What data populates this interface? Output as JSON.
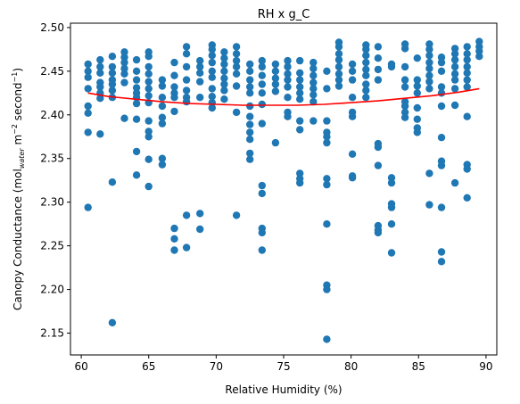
{
  "chart_data": {
    "type": "scatter",
    "title": "RH x g_C",
    "xlabel": "Relative Humidity (%)",
    "ylabel_main": "Canopy Conductance (mol",
    "ylabel_sub": "water",
    "ylabel_mid": " m",
    "ylabel_sup1": "−2",
    "ylabel_mid2": " second",
    "ylabel_sup2": "−1",
    "ylabel_end": ")",
    "xlim": [
      59.2,
      90.8
    ],
    "ylim": [
      2.125,
      2.505
    ],
    "xticks": [
      60,
      65,
      70,
      75,
      80,
      85,
      90
    ],
    "yticks": [
      2.15,
      2.2,
      2.25,
      2.3,
      2.35,
      2.4,
      2.45,
      2.5
    ],
    "colors": {
      "points": "#1f77b4",
      "fit": "#ff0000"
    },
    "fit_line": {
      "x": [
        60.5,
        62,
        64,
        66,
        68,
        70,
        72,
        74,
        76,
        78,
        80,
        82,
        84,
        86,
        88,
        89.5
      ],
      "y": [
        2.425,
        2.421,
        2.418,
        2.415,
        2.413,
        2.412,
        2.411,
        2.411,
        2.411,
        2.412,
        2.414,
        2.416,
        2.419,
        2.422,
        2.426,
        2.43
      ]
    },
    "points": [
      [
        60.5,
        2.458
      ],
      [
        60.5,
        2.45
      ],
      [
        60.5,
        2.443
      ],
      [
        60.5,
        2.43
      ],
      [
        60.5,
        2.41
      ],
      [
        60.5,
        2.402
      ],
      [
        60.5,
        2.38
      ],
      [
        60.5,
        2.294
      ],
      [
        61.4,
        2.463
      ],
      [
        61.4,
        2.455
      ],
      [
        61.4,
        2.448
      ],
      [
        61.4,
        2.437
      ],
      [
        61.4,
        2.432
      ],
      [
        61.4,
        2.425
      ],
      [
        61.4,
        2.419
      ],
      [
        61.4,
        2.378
      ],
      [
        62.3,
        2.467
      ],
      [
        62.3,
        2.455
      ],
      [
        62.3,
        2.448
      ],
      [
        62.3,
        2.44
      ],
      [
        62.3,
        2.435
      ],
      [
        62.3,
        2.428
      ],
      [
        62.3,
        2.42
      ],
      [
        62.3,
        2.323
      ],
      [
        62.3,
        2.162
      ],
      [
        63.2,
        2.472
      ],
      [
        63.2,
        2.466
      ],
      [
        63.2,
        2.46
      ],
      [
        63.2,
        2.453
      ],
      [
        63.2,
        2.447
      ],
      [
        63.2,
        2.437
      ],
      [
        63.2,
        2.396
      ],
      [
        64.1,
        2.463
      ],
      [
        64.1,
        2.45
      ],
      [
        64.1,
        2.44
      ],
      [
        64.1,
        2.431
      ],
      [
        64.1,
        2.425
      ],
      [
        64.1,
        2.42
      ],
      [
        64.1,
        2.413
      ],
      [
        64.1,
        2.395
      ],
      [
        64.1,
        2.358
      ],
      [
        64.1,
        2.331
      ],
      [
        65.0,
        2.472
      ],
      [
        65.0,
        2.467
      ],
      [
        65.0,
        2.455
      ],
      [
        65.0,
        2.447
      ],
      [
        65.0,
        2.438
      ],
      [
        65.0,
        2.43
      ],
      [
        65.0,
        2.422
      ],
      [
        65.0,
        2.414
      ],
      [
        65.0,
        2.393
      ],
      [
        65.0,
        2.381
      ],
      [
        65.0,
        2.375
      ],
      [
        65.0,
        2.349
      ],
      [
        65.0,
        2.318
      ],
      [
        66.0,
        2.44
      ],
      [
        66.0,
        2.433
      ],
      [
        66.0,
        2.42
      ],
      [
        66.0,
        2.41
      ],
      [
        66.0,
        2.397
      ],
      [
        66.0,
        2.39
      ],
      [
        66.0,
        2.35
      ],
      [
        66.0,
        2.343
      ],
      [
        66.9,
        2.46
      ],
      [
        66.9,
        2.445
      ],
      [
        66.9,
        2.432
      ],
      [
        66.9,
        2.425
      ],
      [
        66.9,
        2.42
      ],
      [
        66.9,
        2.404
      ],
      [
        66.9,
        2.27
      ],
      [
        66.9,
        2.258
      ],
      [
        66.9,
        2.245
      ],
      [
        67.8,
        2.478
      ],
      [
        67.8,
        2.47
      ],
      [
        67.8,
        2.455
      ],
      [
        67.8,
        2.44
      ],
      [
        67.8,
        2.428
      ],
      [
        67.8,
        2.42
      ],
      [
        67.8,
        2.415
      ],
      [
        67.8,
        2.285
      ],
      [
        67.8,
        2.248
      ],
      [
        68.8,
        2.462
      ],
      [
        68.8,
        2.455
      ],
      [
        68.8,
        2.448
      ],
      [
        68.8,
        2.438
      ],
      [
        68.8,
        2.42
      ],
      [
        68.8,
        2.287
      ],
      [
        68.8,
        2.269
      ],
      [
        69.7,
        2.48
      ],
      [
        69.7,
        2.475
      ],
      [
        69.7,
        2.468
      ],
      [
        69.7,
        2.46
      ],
      [
        69.7,
        2.45
      ],
      [
        69.7,
        2.443
      ],
      [
        69.7,
        2.43
      ],
      [
        69.7,
        2.421
      ],
      [
        69.7,
        2.414
      ],
      [
        69.7,
        2.408
      ],
      [
        70.6,
        2.472
      ],
      [
        70.6,
        2.465
      ],
      [
        70.6,
        2.458
      ],
      [
        70.6,
        2.45
      ],
      [
        70.6,
        2.442
      ],
      [
        70.6,
        2.435
      ],
      [
        70.6,
        2.428
      ],
      [
        70.6,
        2.418
      ],
      [
        71.5,
        2.478
      ],
      [
        71.5,
        2.47
      ],
      [
        71.5,
        2.462
      ],
      [
        71.5,
        2.455
      ],
      [
        71.5,
        2.447
      ],
      [
        71.5,
        2.433
      ],
      [
        71.5,
        2.403
      ],
      [
        71.5,
        2.285
      ],
      [
        72.5,
        2.458
      ],
      [
        72.5,
        2.45
      ],
      [
        72.5,
        2.44
      ],
      [
        72.5,
        2.432
      ],
      [
        72.5,
        2.425
      ],
      [
        72.5,
        2.41
      ],
      [
        72.5,
        2.398
      ],
      [
        72.5,
        2.389
      ],
      [
        72.5,
        2.38
      ],
      [
        72.5,
        2.372
      ],
      [
        72.5,
        2.356
      ],
      [
        72.5,
        2.349
      ],
      [
        73.4,
        2.462
      ],
      [
        73.4,
        2.455
      ],
      [
        73.4,
        2.445
      ],
      [
        73.4,
        2.435
      ],
      [
        73.4,
        2.425
      ],
      [
        73.4,
        2.412
      ],
      [
        73.4,
        2.39
      ],
      [
        73.4,
        2.319
      ],
      [
        73.4,
        2.31
      ],
      [
        73.4,
        2.27
      ],
      [
        73.4,
        2.265
      ],
      [
        73.4,
        2.245
      ],
      [
        74.4,
        2.458
      ],
      [
        74.4,
        2.45
      ],
      [
        74.4,
        2.442
      ],
      [
        74.4,
        2.435
      ],
      [
        74.4,
        2.427
      ],
      [
        74.4,
        2.368
      ],
      [
        75.3,
        2.462
      ],
      [
        75.3,
        2.455
      ],
      [
        75.3,
        2.447
      ],
      [
        75.3,
        2.44
      ],
      [
        75.3,
        2.432
      ],
      [
        75.3,
        2.42
      ],
      [
        75.3,
        2.403
      ],
      [
        75.3,
        2.398
      ],
      [
        76.2,
        2.462
      ],
      [
        76.2,
        2.448
      ],
      [
        76.2,
        2.44
      ],
      [
        76.2,
        2.432
      ],
      [
        76.2,
        2.425
      ],
      [
        76.2,
        2.418
      ],
      [
        76.2,
        2.393
      ],
      [
        76.2,
        2.383
      ],
      [
        76.2,
        2.333
      ],
      [
        76.2,
        2.327
      ],
      [
        76.2,
        2.322
      ],
      [
        77.2,
        2.46
      ],
      [
        77.2,
        2.453
      ],
      [
        77.2,
        2.445
      ],
      [
        77.2,
        2.437
      ],
      [
        77.2,
        2.43
      ],
      [
        77.2,
        2.423
      ],
      [
        77.2,
        2.415
      ],
      [
        77.2,
        2.393
      ],
      [
        78.2,
        2.45
      ],
      [
        78.2,
        2.43
      ],
      [
        78.2,
        2.393
      ],
      [
        78.2,
        2.38
      ],
      [
        78.2,
        2.375
      ],
      [
        78.2,
        2.368
      ],
      [
        78.2,
        2.327
      ],
      [
        78.2,
        2.32
      ],
      [
        78.2,
        2.275
      ],
      [
        78.2,
        2.205
      ],
      [
        78.2,
        2.2
      ],
      [
        78.2,
        2.143
      ],
      [
        79.1,
        2.483
      ],
      [
        79.1,
        2.478
      ],
      [
        79.1,
        2.47
      ],
      [
        79.1,
        2.463
      ],
      [
        79.1,
        2.455
      ],
      [
        79.1,
        2.447
      ],
      [
        79.1,
        2.44
      ],
      [
        79.1,
        2.433
      ],
      [
        80.1,
        2.458
      ],
      [
        80.1,
        2.45
      ],
      [
        80.1,
        2.44
      ],
      [
        80.1,
        2.42
      ],
      [
        80.1,
        2.403
      ],
      [
        80.1,
        2.398
      ],
      [
        80.1,
        2.355
      ],
      [
        80.1,
        2.33
      ],
      [
        80.1,
        2.328
      ],
      [
        81.1,
        2.48
      ],
      [
        81.1,
        2.475
      ],
      [
        81.1,
        2.468
      ],
      [
        81.1,
        2.46
      ],
      [
        81.1,
        2.452
      ],
      [
        81.1,
        2.445
      ],
      [
        81.1,
        2.435
      ],
      [
        81.1,
        2.428
      ],
      [
        81.1,
        2.42
      ],
      [
        82.0,
        2.478
      ],
      [
        82.0,
        2.465
      ],
      [
        82.0,
        2.452
      ],
      [
        82.0,
        2.44
      ],
      [
        82.0,
        2.367
      ],
      [
        82.0,
        2.363
      ],
      [
        82.0,
        2.342
      ],
      [
        82.0,
        2.273
      ],
      [
        82.0,
        2.268
      ],
      [
        82.0,
        2.265
      ],
      [
        83.0,
        2.458
      ],
      [
        83.0,
        2.455
      ],
      [
        83.0,
        2.328
      ],
      [
        83.0,
        2.322
      ],
      [
        83.0,
        2.298
      ],
      [
        83.0,
        2.294
      ],
      [
        83.0,
        2.275
      ],
      [
        83.0,
        2.242
      ],
      [
        84.0,
        2.481
      ],
      [
        84.0,
        2.476
      ],
      [
        84.0,
        2.455
      ],
      [
        84.0,
        2.44
      ],
      [
        84.0,
        2.432
      ],
      [
        84.0,
        2.415
      ],
      [
        84.0,
        2.41
      ],
      [
        84.0,
        2.403
      ],
      [
        84.0,
        2.397
      ],
      [
        84.9,
        2.465
      ],
      [
        84.9,
        2.44
      ],
      [
        84.9,
        2.433
      ],
      [
        84.9,
        2.425
      ],
      [
        84.9,
        2.408
      ],
      [
        84.9,
        2.395
      ],
      [
        84.9,
        2.385
      ],
      [
        84.9,
        2.38
      ],
      [
        85.8,
        2.481
      ],
      [
        85.8,
        2.475
      ],
      [
        85.8,
        2.468
      ],
      [
        85.8,
        2.46
      ],
      [
        85.8,
        2.453
      ],
      [
        85.8,
        2.445
      ],
      [
        85.8,
        2.438
      ],
      [
        85.8,
        2.43
      ],
      [
        85.8,
        2.333
      ],
      [
        85.8,
        2.297
      ],
      [
        86.7,
        2.466
      ],
      [
        86.7,
        2.46
      ],
      [
        86.7,
        2.45
      ],
      [
        86.7,
        2.432
      ],
      [
        86.7,
        2.425
      ],
      [
        86.7,
        2.41
      ],
      [
        86.7,
        2.374
      ],
      [
        86.7,
        2.347
      ],
      [
        86.7,
        2.342
      ],
      [
        86.7,
        2.294
      ],
      [
        86.7,
        2.243
      ],
      [
        86.7,
        2.232
      ],
      [
        87.7,
        2.476
      ],
      [
        87.7,
        2.47
      ],
      [
        87.7,
        2.463
      ],
      [
        87.7,
        2.455
      ],
      [
        87.7,
        2.447
      ],
      [
        87.7,
        2.44
      ],
      [
        87.7,
        2.43
      ],
      [
        87.7,
        2.411
      ],
      [
        87.7,
        2.322
      ],
      [
        88.6,
        2.478
      ],
      [
        88.6,
        2.47
      ],
      [
        88.6,
        2.463
      ],
      [
        88.6,
        2.455
      ],
      [
        88.6,
        2.448
      ],
      [
        88.6,
        2.44
      ],
      [
        88.6,
        2.432
      ],
      [
        88.6,
        2.398
      ],
      [
        88.6,
        2.343
      ],
      [
        88.6,
        2.338
      ],
      [
        88.6,
        2.305
      ],
      [
        89.5,
        2.484
      ],
      [
        89.5,
        2.478
      ],
      [
        89.5,
        2.473
      ],
      [
        89.5,
        2.467
      ]
    ]
  }
}
